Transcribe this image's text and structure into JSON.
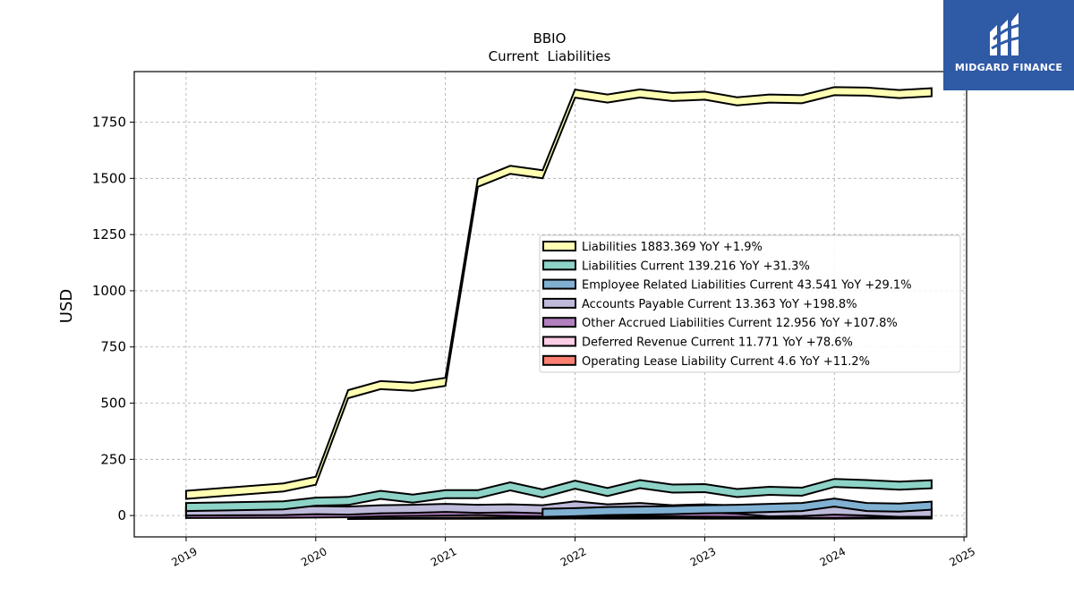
{
  "brand": {
    "name": "MIDGARD FINANCE",
    "color": "#2f5aa6"
  },
  "chart_data": {
    "type": "area",
    "title": "BBIO",
    "subtitle": "Current  Liabilities",
    "xlabel": "",
    "ylabel": "USD",
    "ylim": [
      -95,
      1975
    ],
    "xlim": [
      2018.6,
      2025.02
    ],
    "grid": true,
    "legend_position": "center-right",
    "x_ticks": [
      {
        "v": 2019,
        "label": "2019"
      },
      {
        "v": 2020,
        "label": "2020"
      },
      {
        "v": 2021,
        "label": "2021"
      },
      {
        "v": 2022,
        "label": "2022"
      },
      {
        "v": 2023,
        "label": "2023"
      },
      {
        "v": 2024,
        "label": "2024"
      },
      {
        "v": 2025,
        "label": "2025"
      }
    ],
    "y_ticks": [
      {
        "v": 0,
        "label": "0"
      },
      {
        "v": 250,
        "label": "250"
      },
      {
        "v": 500,
        "label": "500"
      },
      {
        "v": 750,
        "label": "750"
      },
      {
        "v": 1000,
        "label": "1000"
      },
      {
        "v": 1250,
        "label": "1250"
      },
      {
        "v": 1500,
        "label": "1500"
      },
      {
        "v": 1750,
        "label": "1750"
      }
    ],
    "series": [
      {
        "name": "Liabilities",
        "legend": "Liabilities  1883.369 YoY +1.9%",
        "color": "#ffffb3",
        "x": [
          2019.0,
          2019.75,
          2020.0,
          2020.25,
          2020.5,
          2020.75,
          2021.0,
          2021.25,
          2021.5,
          2021.75,
          2022.0,
          2022.25,
          2022.5,
          2022.75,
          2023.0,
          2023.25,
          2023.5,
          2023.75,
          2024.0,
          2024.25,
          2024.5,
          2024.75
        ],
        "y": [
          92,
          125,
          155,
          540,
          580,
          573,
          595,
          1480,
          1538,
          1518,
          1877,
          1855,
          1878,
          1862,
          1868,
          1843,
          1855,
          1852,
          1888,
          1886,
          1875,
          1883
        ]
      },
      {
        "name": "Liabilities Current",
        "legend": "Liabilities Current  139.216 YoY +31.3%",
        "color": "#8dd3c7",
        "x": [
          2019.0,
          2019.75,
          2020.0,
          2020.25,
          2020.5,
          2020.75,
          2021.0,
          2021.25,
          2021.5,
          2021.75,
          2022.0,
          2022.25,
          2022.5,
          2022.75,
          2023.0,
          2023.25,
          2023.5,
          2023.75,
          2024.0,
          2024.25,
          2024.5,
          2024.75
        ],
        "y": [
          38,
          45,
          62,
          65,
          92,
          75,
          95,
          95,
          130,
          98,
          137,
          105,
          140,
          120,
          122,
          100,
          110,
          106,
          145,
          140,
          133,
          139
        ]
      },
      {
        "name": "Employee Related Liabilities Current",
        "legend": "Employee Related Liabilities Current  43.541 YoY +29.1%",
        "color": "#80b1d3",
        "x": [
          2021.75,
          2022.0,
          2022.25,
          2022.5,
          2022.75,
          2023.0,
          2023.25,
          2023.5,
          2023.75,
          2024.0,
          2024.25,
          2024.5,
          2024.75
        ],
        "y": [
          12,
          15,
          20,
          22,
          24,
          28,
          30,
          34,
          38,
          58,
          38,
          35,
          44
        ]
      },
      {
        "name": "Accounts Payable Current",
        "legend": "Accounts Payable Current  13.363 YoY +198.8%",
        "color": "#bebada",
        "x": [
          2019.0,
          2019.75,
          2020.0,
          2020.25,
          2020.5,
          2020.75,
          2021.0,
          2021.25,
          2021.5,
          2021.75,
          2022.0,
          2022.25,
          2022.5,
          2022.75,
          2023.0,
          2023.25,
          2023.5,
          2023.75,
          2024.0,
          2024.25,
          2024.5,
          2024.75
        ],
        "y": [
          18,
          20,
          24,
          22,
          28,
          30,
          34,
          30,
          32,
          28,
          45,
          32,
          38,
          28,
          32,
          26,
          14,
          16,
          22,
          18,
          12,
          13
        ]
      },
      {
        "name": "Other Accrued Liabilities Current",
        "legend": "Other Accrued Liabilities Current  12.956 YoY +107.8%",
        "color": "#b27fbf",
        "x": [
          2019.0,
          2019.75,
          2020.0,
          2020.25,
          2020.5,
          2020.75,
          2021.0,
          2021.25,
          2021.5,
          2021.75,
          2022.0,
          2022.25,
          2022.5,
          2022.75,
          2023.0,
          2023.25,
          2023.5,
          2023.75,
          2024.0,
          2024.25,
          2024.5,
          2024.75
        ],
        "y": [
          7,
          8,
          9,
          10,
          14,
          16,
          18,
          20,
          16,
          14,
          18,
          16,
          15,
          14,
          13,
          12,
          10,
          8,
          7,
          9,
          11,
          13
        ]
      },
      {
        "name": "Deferred Revenue Current",
        "legend": "Deferred Revenue Current  11.771 YoY +78.6%",
        "color": "#fccde5",
        "x": [
          2020.25,
          2020.5,
          2020.75,
          2021.0,
          2021.25,
          2021.5,
          2021.75,
          2022.0,
          2022.25,
          2022.5,
          2022.75,
          2023.0,
          2023.25,
          2023.5,
          2023.75,
          2024.0,
          2024.25,
          2024.5,
          2024.75
        ],
        "y": [
          5,
          6,
          7,
          8,
          9,
          10,
          10,
          11,
          10,
          9,
          8,
          9,
          8,
          7,
          8,
          9,
          10,
          11,
          12
        ]
      },
      {
        "name": "Operating Lease Liability Current",
        "legend": "Operating Lease Liability Current  4.6 YoY +11.2%",
        "color": "#fb8072",
        "x": [
          2020.25,
          2020.5,
          2020.75,
          2021.0,
          2021.25,
          2021.5,
          2021.75,
          2022.0,
          2022.25,
          2022.5,
          2022.75,
          2023.0,
          2023.25,
          2023.5,
          2023.75,
          2024.0,
          2024.25,
          2024.5,
          2024.75
        ],
        "y": [
          2.5,
          3,
          3.2,
          3.5,
          3.8,
          4,
          4.2,
          4.4,
          4.1,
          4.3,
          4.5,
          4.2,
          4.0,
          4.1,
          4.3,
          4.2,
          4.4,
          4.5,
          4.6
        ]
      }
    ]
  }
}
